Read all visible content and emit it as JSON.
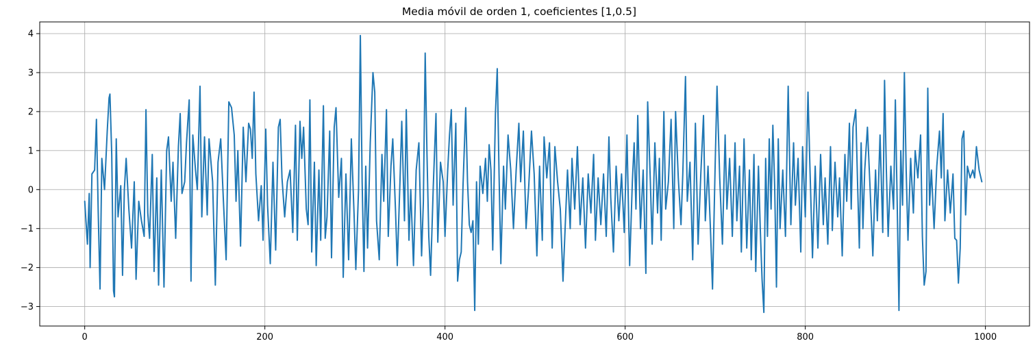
{
  "chart_data": {
    "type": "line",
    "title": "Media móvil de orden 1, coeficientes [1,0.5]",
    "xlabel": "",
    "ylabel": "",
    "xlim": [
      -49.95,
      1048.95
    ],
    "ylim": [
      -3.5,
      4.3
    ],
    "xticks": [
      0,
      200,
      400,
      600,
      800,
      1000
    ],
    "yticks": [
      -3,
      -2,
      -1,
      0,
      1,
      2,
      3,
      4
    ],
    "grid": true,
    "series_color": "#1f77b4",
    "n_points": 1000,
    "anchors": [
      [
        0,
        -0.3
      ],
      [
        3,
        -1.4
      ],
      [
        5,
        -0.1
      ],
      [
        6,
        -2.0
      ],
      [
        8,
        0.4
      ],
      [
        11,
        0.5
      ],
      [
        13,
        1.8
      ],
      [
        15,
        -0.6
      ],
      [
        17,
        -2.55
      ],
      [
        19,
        0.8
      ],
      [
        22,
        0.0
      ],
      [
        25,
        1.5
      ],
      [
        27,
        2.35
      ],
      [
        28,
        2.45
      ],
      [
        30,
        0.9
      ],
      [
        32,
        -2.6
      ],
      [
        33,
        -2.75
      ],
      [
        35,
        1.3
      ],
      [
        37,
        -0.7
      ],
      [
        40,
        0.1
      ],
      [
        42,
        -2.2
      ],
      [
        44,
        0.0
      ],
      [
        46,
        0.8
      ],
      [
        49,
        -0.5
      ],
      [
        52,
        -1.5
      ],
      [
        55,
        0.2
      ],
      [
        57,
        -2.3
      ],
      [
        60,
        -0.3
      ],
      [
        63,
        -0.8
      ],
      [
        66,
        -1.2
      ],
      [
        68,
        2.05
      ],
      [
        70,
        -0.6
      ],
      [
        72,
        -1.25
      ],
      [
        75,
        0.9
      ],
      [
        77,
        -2.1
      ],
      [
        80,
        0.3
      ],
      [
        82,
        -2.45
      ],
      [
        85,
        0.5
      ],
      [
        88,
        -2.5
      ],
      [
        91,
        1.0
      ],
      [
        93,
        1.35
      ],
      [
        96,
        -0.3
      ],
      [
        98,
        0.7
      ],
      [
        101,
        -1.25
      ],
      [
        104,
        1.1
      ],
      [
        106,
        1.95
      ],
      [
        108,
        -0.1
      ],
      [
        111,
        0.2
      ],
      [
        113,
        1.2
      ],
      [
        116,
        2.3
      ],
      [
        118,
        -2.35
      ],
      [
        120,
        1.4
      ],
      [
        123,
        0.5
      ],
      [
        125,
        0.0
      ],
      [
        128,
        2.65
      ],
      [
        130,
        -0.7
      ],
      [
        133,
        1.35
      ],
      [
        136,
        -0.65
      ],
      [
        138,
        1.3
      ],
      [
        142,
        0.2
      ],
      [
        145,
        -2.45
      ],
      [
        148,
        0.7
      ],
      [
        151,
        1.3
      ],
      [
        154,
        -0.3
      ],
      [
        157,
        -1.8
      ],
      [
        160,
        2.25
      ],
      [
        163,
        2.1
      ],
      [
        166,
        1.4
      ],
      [
        168,
        -0.3
      ],
      [
        170,
        1.0
      ],
      [
        173,
        -1.45
      ],
      [
        176,
        1.6
      ],
      [
        179,
        0.2
      ],
      [
        182,
        1.7
      ],
      [
        184,
        1.55
      ],
      [
        186,
        0.8
      ],
      [
        188,
        2.5
      ],
      [
        190,
        0.4
      ],
      [
        193,
        -0.8
      ],
      [
        196,
        0.1
      ],
      [
        198,
        -1.3
      ],
      [
        201,
        1.55
      ],
      [
        203,
        -0.4
      ],
      [
        206,
        -1.9
      ],
      [
        209,
        0.7
      ],
      [
        212,
        -1.55
      ],
      [
        215,
        1.6
      ],
      [
        217,
        1.8
      ],
      [
        219,
        0.3
      ],
      [
        222,
        -0.7
      ],
      [
        225,
        0.2
      ],
      [
        228,
        0.5
      ],
      [
        231,
        -1.1
      ],
      [
        234,
        1.65
      ],
      [
        236,
        -1.3
      ],
      [
        239,
        1.75
      ],
      [
        241,
        0.8
      ],
      [
        243,
        1.6
      ],
      [
        246,
        -0.5
      ],
      [
        248,
        -0.9
      ],
      [
        250,
        2.3
      ],
      [
        252,
        -1.6
      ],
      [
        255,
        0.7
      ],
      [
        257,
        -1.95
      ],
      [
        260,
        0.5
      ],
      [
        262,
        -1.3
      ],
      [
        265,
        2.15
      ],
      [
        267,
        -1.25
      ],
      [
        269,
        -0.7
      ],
      [
        272,
        1.5
      ],
      [
        274,
        -1.75
      ],
      [
        277,
        1.6
      ],
      [
        279,
        2.1
      ],
      [
        282,
        -0.2
      ],
      [
        285,
        0.8
      ],
      [
        287,
        -2.25
      ],
      [
        290,
        0.4
      ],
      [
        293,
        -1.8
      ],
      [
        296,
        1.3
      ],
      [
        299,
        -0.6
      ],
      [
        301,
        -2.05
      ],
      [
        304,
        0.0
      ],
      [
        306,
        3.95
      ],
      [
        308,
        0.2
      ],
      [
        310,
        -2.1
      ],
      [
        312,
        0.6
      ],
      [
        314,
        -1.5
      ],
      [
        317,
        1.2
      ],
      [
        320,
        3.0
      ],
      [
        322,
        2.5
      ],
      [
        324,
        -0.8
      ],
      [
        327,
        -1.8
      ],
      [
        330,
        0.9
      ],
      [
        332,
        -0.3
      ],
      [
        335,
        2.05
      ],
      [
        337,
        -1.2
      ],
      [
        340,
        0.6
      ],
      [
        342,
        1.3
      ],
      [
        345,
        -0.5
      ],
      [
        347,
        -1.95
      ],
      [
        350,
        0.2
      ],
      [
        352,
        1.75
      ],
      [
        355,
        -0.8
      ],
      [
        357,
        2.05
      ],
      [
        360,
        -1.3
      ],
      [
        362,
        0.0
      ],
      [
        365,
        -1.95
      ],
      [
        368,
        0.5
      ],
      [
        371,
        1.2
      ],
      [
        374,
        -1.7
      ],
      [
        376,
        -0.3
      ],
      [
        378,
        3.5
      ],
      [
        380,
        0.9
      ],
      [
        382,
        -1.2
      ],
      [
        384,
        -2.2
      ],
      [
        387,
        0.1
      ],
      [
        390,
        1.95
      ],
      [
        392,
        -1.35
      ],
      [
        395,
        0.7
      ],
      [
        398,
        0.2
      ],
      [
        400,
        -1.2
      ],
      [
        403,
        0.5
      ],
      [
        405,
        1.4
      ],
      [
        407,
        2.05
      ],
      [
        409,
        -0.4
      ],
      [
        412,
        1.7
      ],
      [
        414,
        -2.35
      ],
      [
        416,
        -1.8
      ],
      [
        418,
        -1.6
      ],
      [
        420,
        0.1
      ],
      [
        423,
        2.1
      ],
      [
        425,
        0.2
      ],
      [
        427,
        -0.9
      ],
      [
        429,
        -1.1
      ],
      [
        431,
        -0.8
      ],
      [
        433,
        -3.1
      ],
      [
        435,
        0.2
      ],
      [
        437,
        -1.4
      ],
      [
        439,
        0.6
      ],
      [
        442,
        -0.1
      ],
      [
        445,
        0.8
      ],
      [
        447,
        -0.3
      ],
      [
        449,
        1.15
      ],
      [
        451,
        0.5
      ],
      [
        453,
        -1.55
      ],
      [
        456,
        1.95
      ],
      [
        458,
        3.1
      ],
      [
        460,
        0.4
      ],
      [
        462,
        -1.9
      ],
      [
        465,
        0.6
      ],
      [
        467,
        -0.5
      ],
      [
        470,
        1.4
      ],
      [
        473,
        0.5
      ],
      [
        476,
        -1.0
      ],
      [
        479,
        0.5
      ],
      [
        482,
        1.7
      ],
      [
        484,
        0.2
      ],
      [
        487,
        1.5
      ],
      [
        490,
        -1.0
      ],
      [
        493,
        0.1
      ],
      [
        496,
        1.5
      ],
      [
        499,
        0.4
      ],
      [
        502,
        -1.7
      ],
      [
        505,
        0.6
      ],
      [
        508,
        -1.3
      ],
      [
        510,
        1.35
      ],
      [
        513,
        0.3
      ],
      [
        516,
        1.2
      ],
      [
        519,
        -1.5
      ],
      [
        522,
        1.1
      ],
      [
        525,
        0.2
      ],
      [
        528,
        -0.5
      ],
      [
        531,
        -2.35
      ],
      [
        533,
        -1.2
      ],
      [
        536,
        0.5
      ],
      [
        539,
        -1.0
      ],
      [
        541,
        0.8
      ],
      [
        544,
        -0.5
      ],
      [
        547,
        1.1
      ],
      [
        550,
        -0.9
      ],
      [
        553,
        0.3
      ],
      [
        556,
        -1.5
      ],
      [
        559,
        0.4
      ],
      [
        562,
        -0.6
      ],
      [
        565,
        0.9
      ],
      [
        567,
        -1.3
      ],
      [
        570,
        0.3
      ],
      [
        573,
        -0.9
      ],
      [
        576,
        0.4
      ],
      [
        579,
        -1.2
      ],
      [
        582,
        1.35
      ],
      [
        584,
        -0.2
      ],
      [
        587,
        -1.6
      ],
      [
        590,
        0.6
      ],
      [
        593,
        -0.8
      ],
      [
        596,
        0.4
      ],
      [
        599,
        -1.1
      ],
      [
        602,
        1.4
      ],
      [
        605,
        -1.95
      ],
      [
        608,
        0.2
      ],
      [
        610,
        1.2
      ],
      [
        612,
        -0.5
      ],
      [
        614,
        1.9
      ],
      [
        617,
        -1.0
      ],
      [
        620,
        0.5
      ],
      [
        623,
        -2.15
      ],
      [
        625,
        2.25
      ],
      [
        628,
        0.2
      ],
      [
        630,
        -1.4
      ],
      [
        633,
        1.2
      ],
      [
        636,
        -0.6
      ],
      [
        638,
        0.8
      ],
      [
        640,
        -1.3
      ],
      [
        643,
        2.0
      ],
      [
        645,
        -0.5
      ],
      [
        648,
        0.2
      ],
      [
        651,
        1.8
      ],
      [
        654,
        -1.0
      ],
      [
        656,
        2.0
      ],
      [
        659,
        0.3
      ],
      [
        662,
        -0.9
      ],
      [
        664,
        0.4
      ],
      [
        667,
        2.9
      ],
      [
        669,
        -0.3
      ],
      [
        672,
        0.7
      ],
      [
        675,
        -1.8
      ],
      [
        678,
        1.7
      ],
      [
        681,
        -1.4
      ],
      [
        684,
        0.4
      ],
      [
        687,
        1.9
      ],
      [
        689,
        -0.8
      ],
      [
        692,
        0.6
      ],
      [
        695,
        -1.2
      ],
      [
        697,
        -2.55
      ],
      [
        700,
        0.7
      ],
      [
        702,
        2.65
      ],
      [
        705,
        0.3
      ],
      [
        708,
        -1.4
      ],
      [
        711,
        1.4
      ],
      [
        713,
        -0.5
      ],
      [
        716,
        0.8
      ],
      [
        719,
        -1.2
      ],
      [
        722,
        1.2
      ],
      [
        724,
        -0.8
      ],
      [
        727,
        0.6
      ],
      [
        729,
        -1.6
      ],
      [
        732,
        1.3
      ],
      [
        735,
        -1.5
      ],
      [
        738,
        0.5
      ],
      [
        740,
        -1.8
      ],
      [
        743,
        0.9
      ],
      [
        745,
        -2.1
      ],
      [
        748,
        0.6
      ],
      [
        750,
        -1.0
      ],
      [
        752,
        -2.3
      ],
      [
        754,
        -3.15
      ],
      [
        756,
        0.8
      ],
      [
        758,
        -1.2
      ],
      [
        760,
        1.3
      ],
      [
        762,
        -0.5
      ],
      [
        764,
        1.65
      ],
      [
        766,
        0.1
      ],
      [
        768,
        -2.5
      ],
      [
        770,
        1.3
      ],
      [
        772,
        -1.0
      ],
      [
        775,
        0.5
      ],
      [
        778,
        -1.2
      ],
      [
        781,
        2.65
      ],
      [
        784,
        -0.9
      ],
      [
        787,
        1.2
      ],
      [
        789,
        -0.4
      ],
      [
        792,
        0.8
      ],
      [
        795,
        -1.6
      ],
      [
        797,
        1.1
      ],
      [
        800,
        -0.7
      ],
      [
        803,
        2.5
      ],
      [
        805,
        0.7
      ],
      [
        808,
        -1.75
      ],
      [
        811,
        0.6
      ],
      [
        814,
        -1.5
      ],
      [
        817,
        0.9
      ],
      [
        820,
        -0.9
      ],
      [
        822,
        0.3
      ],
      [
        825,
        -1.4
      ],
      [
        828,
        1.1
      ],
      [
        830,
        -1.05
      ],
      [
        833,
        0.7
      ],
      [
        836,
        -0.7
      ],
      [
        838,
        0.3
      ],
      [
        841,
        -1.7
      ],
      [
        844,
        0.9
      ],
      [
        846,
        -0.3
      ],
      [
        849,
        1.7
      ],
      [
        851,
        -0.5
      ],
      [
        853,
        1.6
      ],
      [
        856,
        2.05
      ],
      [
        858,
        0.2
      ],
      [
        860,
        -1.5
      ],
      [
        862,
        1.2
      ],
      [
        864,
        -1.0
      ],
      [
        866,
        0.5
      ],
      [
        869,
        1.6
      ],
      [
        872,
        0.0
      ],
      [
        875,
        -1.7
      ],
      [
        878,
        0.5
      ],
      [
        880,
        -0.8
      ],
      [
        883,
        1.4
      ],
      [
        886,
        -1.1
      ],
      [
        888,
        2.8
      ],
      [
        890,
        0.5
      ],
      [
        892,
        -1.2
      ],
      [
        895,
        0.6
      ],
      [
        898,
        -0.5
      ],
      [
        900,
        2.3
      ],
      [
        902,
        -0.3
      ],
      [
        904,
        -3.1
      ],
      [
        906,
        1.0
      ],
      [
        908,
        -0.4
      ],
      [
        910,
        3.0
      ],
      [
        912,
        0.5
      ],
      [
        914,
        -1.3
      ],
      [
        917,
        0.8
      ],
      [
        920,
        -0.6
      ],
      [
        922,
        1.0
      ],
      [
        925,
        0.3
      ],
      [
        928,
        1.4
      ],
      [
        930,
        -1.2
      ],
      [
        932,
        -2.45
      ],
      [
        934,
        -2.1
      ],
      [
        936,
        2.6
      ],
      [
        938,
        -0.4
      ],
      [
        940,
        0.5
      ],
      [
        943,
        -1.0
      ],
      [
        946,
        0.6
      ],
      [
        949,
        1.5
      ],
      [
        951,
        0.3
      ],
      [
        953,
        1.95
      ],
      [
        955,
        -0.8
      ],
      [
        958,
        0.5
      ],
      [
        961,
        -0.6
      ],
      [
        964,
        0.4
      ],
      [
        966,
        -1.25
      ],
      [
        968,
        -1.3
      ],
      [
        970,
        -2.4
      ],
      [
        972,
        -1.5
      ],
      [
        974,
        1.3
      ],
      [
        976,
        1.5
      ],
      [
        978,
        -0.65
      ],
      [
        980,
        0.6
      ],
      [
        983,
        0.3
      ],
      [
        986,
        0.5
      ],
      [
        988,
        0.3
      ],
      [
        990,
        1.1
      ],
      [
        993,
        0.5
      ],
      [
        996,
        0.2
      ]
    ]
  }
}
